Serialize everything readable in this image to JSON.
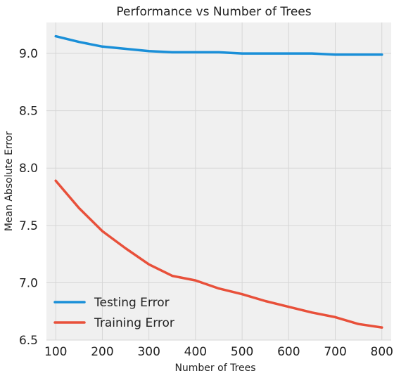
{
  "chart_data": {
    "type": "line",
    "title": "Performance vs Number of Trees",
    "xlabel": "Number of Trees",
    "ylabel": "Mean Absolute Error",
    "xlim": [
      80,
      820
    ],
    "ylim": [
      6.5,
      9.27
    ],
    "xticks": [
      100,
      200,
      300,
      400,
      500,
      600,
      700,
      800
    ],
    "yticks": [
      6.5,
      7.0,
      7.5,
      8.0,
      8.5,
      9.0
    ],
    "ytick_labels": [
      "6.5",
      "7.0",
      "7.5",
      "8.0",
      "8.5",
      "9.0"
    ],
    "grid": true,
    "legend_position": "lower-left",
    "background_color": "#f0f0f0",
    "series": [
      {
        "name": "Testing Error",
        "color": "#1a8fd8",
        "x": [
          100,
          150,
          200,
          250,
          300,
          350,
          400,
          450,
          500,
          550,
          600,
          650,
          700,
          750,
          800
        ],
        "y": [
          9.15,
          9.1,
          9.06,
          9.04,
          9.02,
          9.01,
          9.01,
          9.01,
          9.0,
          9.0,
          9.0,
          9.0,
          8.99,
          8.99,
          8.99
        ]
      },
      {
        "name": "Training Error",
        "color": "#e8503a",
        "x": [
          100,
          150,
          200,
          250,
          300,
          350,
          400,
          450,
          500,
          550,
          600,
          650,
          700,
          750,
          800
        ],
        "y": [
          7.89,
          7.65,
          7.45,
          7.3,
          7.16,
          7.06,
          7.02,
          6.95,
          6.9,
          6.84,
          6.79,
          6.74,
          6.7,
          6.64,
          6.61
        ]
      }
    ]
  }
}
